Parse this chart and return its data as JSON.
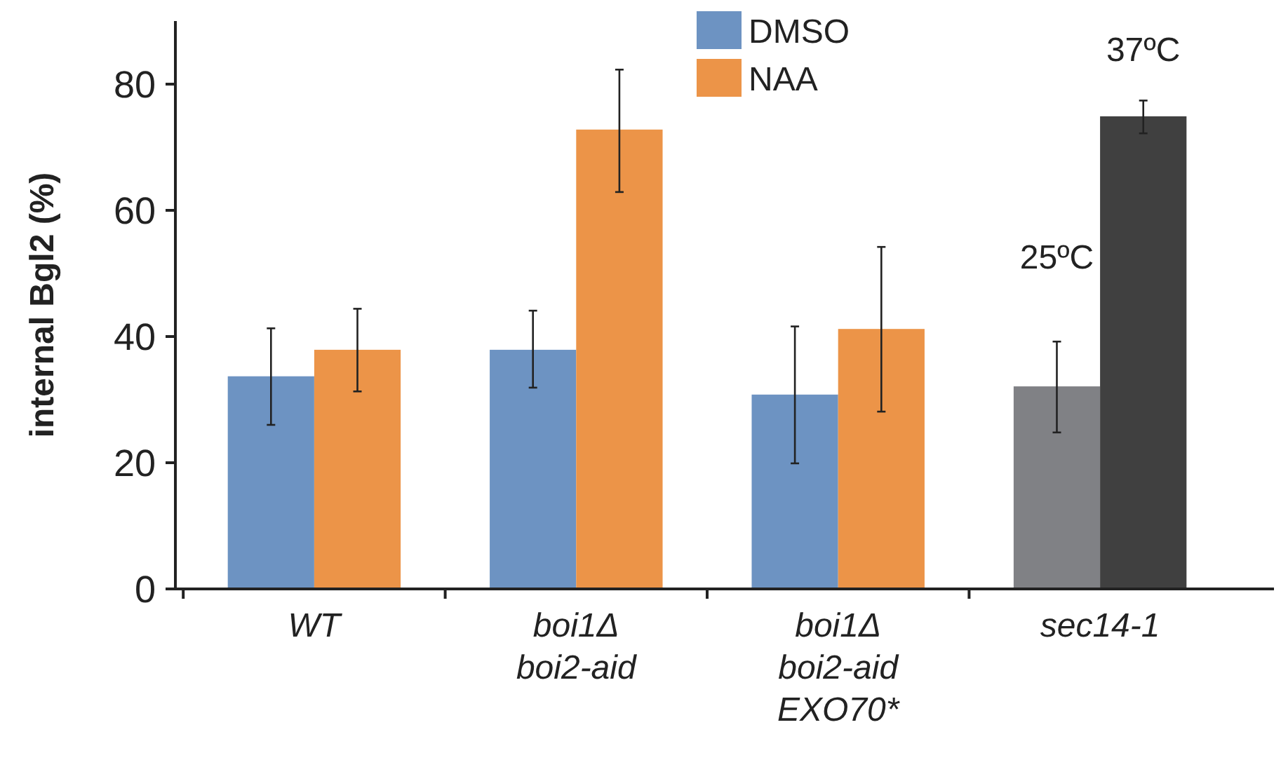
{
  "chart_data": {
    "type": "bar",
    "ylabel": "internal Bgl2 (%)",
    "categories": [
      "WT",
      "boi1Δ\nboi2-aid",
      "boi1Δ\nboi2-aid\nEXO70*",
      "sec14-1"
    ],
    "series": [
      {
        "name": "DMSO",
        "color": "#6d93c2",
        "colors": [
          "#6d93c2",
          "#6d93c2",
          "#6d93c2",
          "#808185"
        ],
        "values": [
          33.7,
          37.9,
          30.8,
          32.1
        ],
        "errors": [
          [
            26,
            41.3
          ],
          [
            31.9,
            44.1
          ],
          [
            19.9,
            41.6
          ],
          [
            24.8,
            39.2
          ]
        ]
      },
      {
        "name": "NAA",
        "color": "#ec9448",
        "colors": [
          "#ec9448",
          "#ec9448",
          "#ec9448",
          "#404040"
        ],
        "values": [
          37.9,
          72.8,
          41.2,
          74.9
        ],
        "errors": [
          [
            31.3,
            44.4
          ],
          [
            62.9,
            82.3
          ],
          [
            28.1,
            54.2
          ],
          [
            72.2,
            77.4
          ]
        ]
      }
    ],
    "annotations": [
      "25ºC",
      "37ºC"
    ],
    "ylim": [
      0,
      90
    ],
    "yticks": [
      0,
      20,
      40,
      60,
      80
    ],
    "grid": false,
    "legend": "top"
  }
}
